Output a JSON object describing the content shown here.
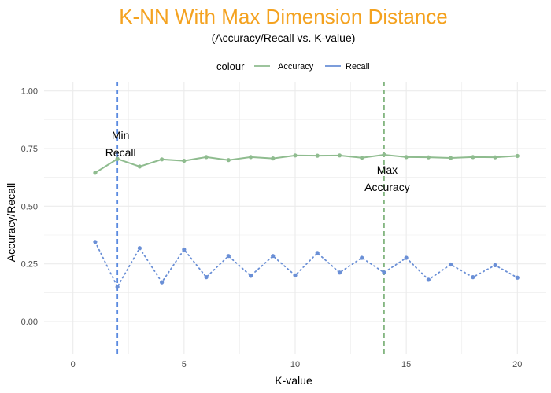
{
  "chart_data": {
    "type": "line",
    "title": "K-NN With Max Dimension Distance",
    "subtitle": "(Accuracy/Recall vs. K-value)",
    "xlabel": "K-value",
    "ylabel": "Accuracy/Recall",
    "xlim": [
      -1.3,
      21.3
    ],
    "ylim": [
      -0.14,
      1.04
    ],
    "x_ticks": [
      0,
      5,
      10,
      15,
      20
    ],
    "y_ticks": [
      0.0,
      0.25,
      0.5,
      0.75,
      1.0
    ],
    "y_tick_labels": [
      "0.00",
      "0.25",
      "0.50",
      "0.75",
      "1.00"
    ],
    "grid": true,
    "legend": {
      "title": "colour",
      "position": "top",
      "entries": [
        "Accuracy",
        "Recall"
      ]
    },
    "x": [
      1,
      2,
      3,
      4,
      5,
      6,
      7,
      8,
      9,
      10,
      11,
      12,
      13,
      14,
      15,
      16,
      17,
      18,
      19,
      20
    ],
    "series": [
      {
        "name": "Accuracy",
        "color": "#8fbc8f",
        "line_style": "solid",
        "values": [
          0.645,
          0.705,
          0.672,
          0.703,
          0.697,
          0.713,
          0.7,
          0.713,
          0.707,
          0.72,
          0.719,
          0.72,
          0.71,
          0.723,
          0.713,
          0.712,
          0.709,
          0.713,
          0.712,
          0.718
        ]
      },
      {
        "name": "Recall",
        "color": "#6a8fd6",
        "line_style": "dotted",
        "values": [
          0.345,
          0.15,
          0.318,
          0.17,
          0.312,
          0.192,
          0.284,
          0.198,
          0.284,
          0.2,
          0.297,
          0.212,
          0.276,
          0.212,
          0.276,
          0.181,
          0.247,
          0.192,
          0.244,
          0.19
        ]
      }
    ],
    "reference_lines": [
      {
        "x": 2,
        "color": "#5b8be0",
        "label_lines": [
          "Min",
          "Recall"
        ],
        "label_y": 0.77
      },
      {
        "x": 14,
        "color": "#82b57f",
        "label_lines": [
          "Max",
          "Accuracy"
        ],
        "label_y": 0.62
      }
    ],
    "colors": {
      "title": "#f4a21f",
      "grid": "#ebebeb",
      "background": "#ffffff"
    }
  }
}
